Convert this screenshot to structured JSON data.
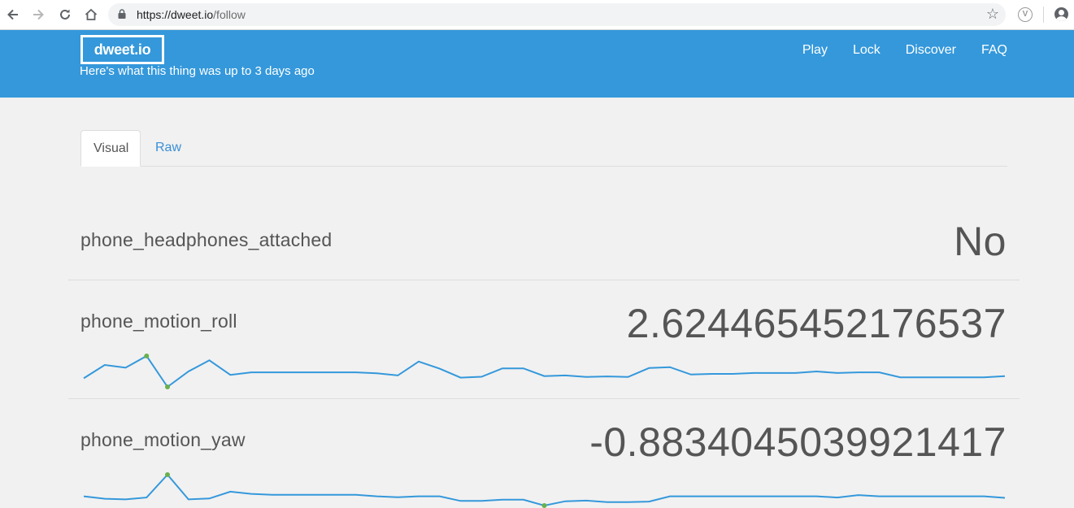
{
  "browser": {
    "url_base": "https://dweet.io",
    "url_path": "/follow",
    "ext_label": "V"
  },
  "header": {
    "logo": "dweet.io",
    "subtitle": "Here's what this thing was up to 3 days ago",
    "nav": [
      "Play",
      "Lock",
      "Discover",
      "FAQ"
    ],
    "bg_color": "#3498db"
  },
  "tabs": [
    {
      "label": "Visual",
      "active": true
    },
    {
      "label": "Raw",
      "active": false
    }
  ],
  "metrics": [
    {
      "key": "phone_headphones_attached",
      "value": "No"
    },
    {
      "key": "phone_motion_roll",
      "value": "2.624465452176537"
    },
    {
      "key": "phone_motion_yaw",
      "value": "-0.8834045039921417"
    }
  ],
  "chart_data": [
    {
      "type": "line",
      "series": [
        {
          "values": [
            0.28,
            0.71,
            0.62,
            1.0,
            0.0,
            0.5,
            0.86,
            0.39,
            0.47,
            0.47,
            0.47,
            0.47,
            0.47,
            0.47,
            0.44,
            0.37,
            0.82,
            0.59,
            0.3,
            0.33,
            0.6,
            0.6,
            0.35,
            0.37,
            0.32,
            0.34,
            0.32,
            0.61,
            0.64,
            0.4,
            0.42,
            0.42,
            0.45,
            0.45,
            0.45,
            0.5,
            0.45,
            0.47,
            0.47,
            0.31,
            0.31,
            0.31,
            0.31,
            0.31,
            0.35
          ]
        }
      ],
      "highlights": [
        3,
        4
      ],
      "line_color": "#3498db",
      "point_color": "#6ab04c"
    },
    {
      "type": "line",
      "series": [
        {
          "values": [
            0.3,
            0.22,
            0.2,
            0.26,
            1.0,
            0.2,
            0.23,
            0.45,
            0.38,
            0.35,
            0.35,
            0.35,
            0.35,
            0.35,
            0.3,
            0.27,
            0.3,
            0.3,
            0.15,
            0.15,
            0.19,
            0.19,
            0.0,
            0.14,
            0.16,
            0.11,
            0.11,
            0.13,
            0.3,
            0.3,
            0.3,
            0.3,
            0.3,
            0.3,
            0.3,
            0.3,
            0.26,
            0.34,
            0.3,
            0.3,
            0.3,
            0.3,
            0.3,
            0.3,
            0.25
          ]
        }
      ],
      "highlights": [
        4,
        22
      ],
      "line_color": "#3498db",
      "point_color": "#6ab04c"
    }
  ]
}
